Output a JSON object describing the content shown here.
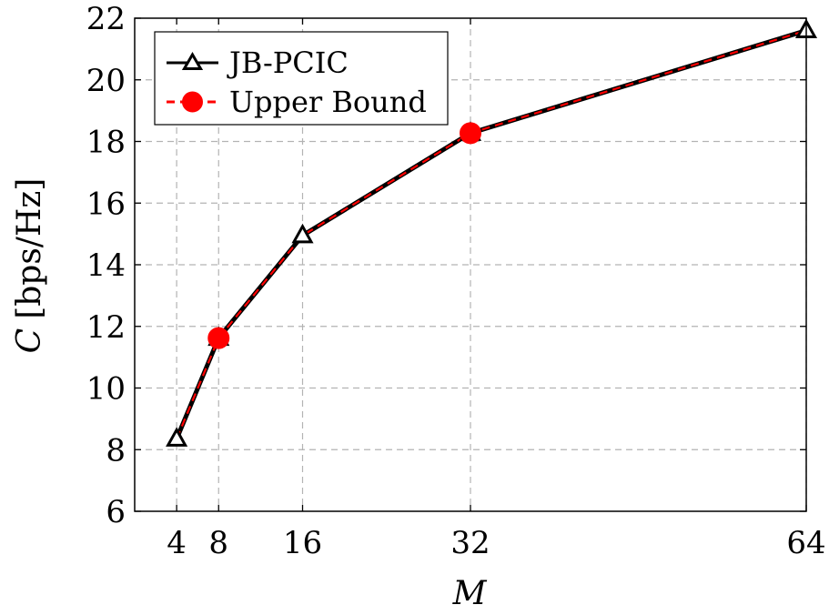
{
  "chart_data": {
    "type": "line",
    "xlabel": "M",
    "ylabel_var": "C",
    "ylabel_unit": "[bps/Hz]",
    "xlim": [
      0,
      64
    ],
    "ylim": [
      6,
      22
    ],
    "xticks": [
      4,
      8,
      16,
      32,
      64
    ],
    "yticks": [
      6,
      8,
      10,
      12,
      14,
      16,
      18,
      20,
      22
    ],
    "grid": true,
    "legend_position": "top-left",
    "series": [
      {
        "name": "JB-PCIC",
        "color": "#000000",
        "marker": "triangle-open",
        "line": "solid",
        "x": [
          4,
          8,
          16,
          32,
          64
        ],
        "y": [
          8.35,
          11.62,
          14.95,
          18.27,
          21.6
        ]
      },
      {
        "name": "Upper Bound",
        "color": "#ff0000",
        "marker": "circle-filled",
        "line": "dashed",
        "x": [
          4,
          8,
          16,
          32,
          64
        ],
        "y": [
          8.35,
          11.62,
          14.95,
          18.27,
          21.6
        ]
      }
    ]
  }
}
